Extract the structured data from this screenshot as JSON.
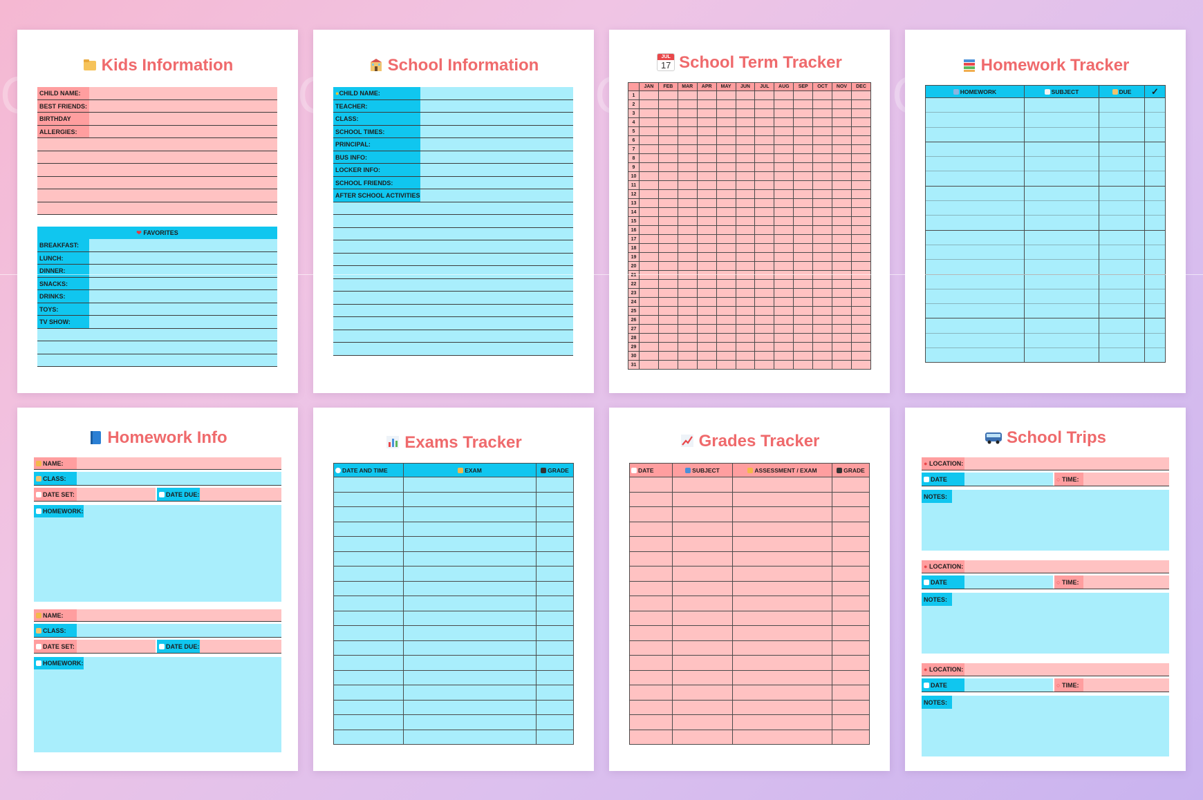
{
  "watermark": "CraftNest",
  "kids": {
    "title": "Kids Information",
    "fields": [
      "CHILD NAME:",
      "BEST FRIENDS:",
      "BIRTHDAY",
      "ALLERGIES:"
    ],
    "favorites_title": "FAVORITES",
    "favorites": [
      "BREAKFAST:",
      "LUNCH:",
      "DINNER:",
      "SNACKS:",
      "DRINKS:",
      "TOYS:",
      "TV SHOW:"
    ]
  },
  "school_info": {
    "title": "School Information",
    "fields": [
      "CHILD NAME:",
      "TEACHER:",
      "CLASS:",
      "SCHOOL TIMES:",
      "PRINCIPAL:",
      "BUS INFO:",
      "LOCKER INFO:",
      "SCHOOL FRIENDS:",
      "AFTER SCHOOL ACTIVITIES:"
    ]
  },
  "term": {
    "title": "School Term Tracker",
    "calendar_icon": {
      "month": "JUL",
      "day": "17"
    },
    "months": [
      "JAN",
      "FEB",
      "MAR",
      "APR",
      "MAY",
      "JUN",
      "JUL",
      "AUG",
      "SEP",
      "OCT",
      "NOV",
      "DEC"
    ],
    "days": [
      "1",
      "2",
      "3",
      "4",
      "5",
      "6",
      "7",
      "8",
      "9",
      "10",
      "11",
      "12",
      "13",
      "14",
      "15",
      "16",
      "17",
      "18",
      "19",
      "20",
      "21",
      "22",
      "23",
      "24",
      "25",
      "26",
      "27",
      "28",
      "29",
      "30",
      "31"
    ]
  },
  "homework_tracker": {
    "title": "Homework Tracker",
    "headers": [
      "HOMEWORK",
      "SUBJECT",
      "DUE"
    ],
    "check_symbol": "✓"
  },
  "homework_info": {
    "title": "Homework Info",
    "labels": {
      "name": "NAME:",
      "class": "CLASS:",
      "date_set": "DATE SET:",
      "date_due": "DATE DUE:",
      "homework": "HOMEWORK:"
    }
  },
  "exams": {
    "title": "Exams Tracker",
    "headers": [
      "DATE AND TIME",
      "EXAM",
      "GRADE"
    ]
  },
  "grades": {
    "title": "Grades Tracker",
    "headers": [
      "DATE",
      "SUBJECT",
      "ASSESSMENT / EXAM",
      "GRADE"
    ]
  },
  "trips": {
    "title": "School Trips",
    "labels": {
      "location": "LOCATION:",
      "date": "DATE",
      "time": "TIME:",
      "notes": "NOTES:"
    }
  },
  "colors": {
    "pink": "#ffc2c2",
    "pink_dark": "#ff9e9f",
    "blue": "#a9eefc",
    "blue_dark": "#10c6ef",
    "title": "#ef6a6c"
  }
}
